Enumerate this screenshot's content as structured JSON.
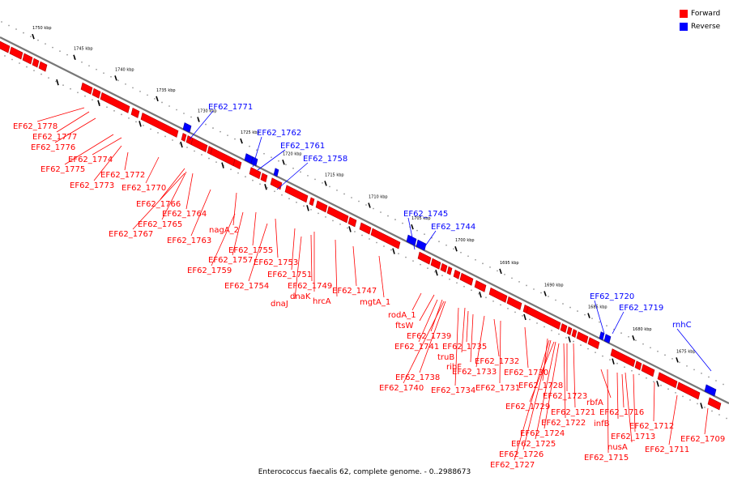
{
  "legend": {
    "forward_label": "Forward",
    "reverse_label": "Reverse",
    "forward_color": "#ff0000",
    "reverse_color": "#0000ff"
  },
  "caption": "Enterococcus faecalis 62, complete genome. - 0..2988673",
  "ticks": [
    "1750 kbp",
    "1745 kbp",
    "1740 kbp",
    "1735 kbp",
    "1730 kbp",
    "1725 kbp",
    "1720 kbp",
    "1715 kbp",
    "1710 kbp",
    "1705 kbp",
    "1700 kbp",
    "1695 kbp",
    "1690 kbp",
    "1685 kbp",
    "1680 kbp",
    "1675 kbp"
  ],
  "genes_forward": [
    "EF62_1778",
    "EF62_1777",
    "EF62_1776",
    "EF62_1774",
    "EF62_1775",
    "EF62_1772",
    "EF62_1773",
    "EF62_1770",
    "EF62_1766",
    "EF62_1764",
    "EF62_1765",
    "EF62_1767",
    "EF62_1763",
    "nagA_2",
    "EF62_1755",
    "EF62_1757",
    "EF62_1753",
    "EF62_1759",
    "EF62_1751",
    "EF62_1754",
    "EF62_1749",
    "dnaK",
    "dnaJ",
    "hrcA",
    "EF62_1747",
    "mgtA_1",
    "rodA_1",
    "ftsW",
    "EF62_1739",
    "EF62_1741",
    "EF62_1735",
    "truB",
    "ribF",
    "EF62_1738",
    "EF62_1733",
    "EF62_1732",
    "EF62_1740",
    "EF62_1730",
    "EF62_1734",
    "EF62_1731",
    "EF62_1728",
    "EF62_1723",
    "EF62_1729",
    "rbfA",
    "EF62_1721",
    "EF62_1716",
    "EF62_1722",
    "infB",
    "EF62_1724",
    "EF62_1713",
    "EF62_1712",
    "EF62_1725",
    "nusA",
    "EF62_1711",
    "EF62_1709",
    "EF62_1726",
    "EF62_1715",
    "EF62_1727"
  ],
  "genes_reverse": [
    "EF62_1771",
    "EF62_1762",
    "EF62_1761",
    "EF62_1758",
    "EF62_1745",
    "EF62_1744",
    "EF62_1720",
    "EF62_1719",
    "rnhC"
  ]
}
